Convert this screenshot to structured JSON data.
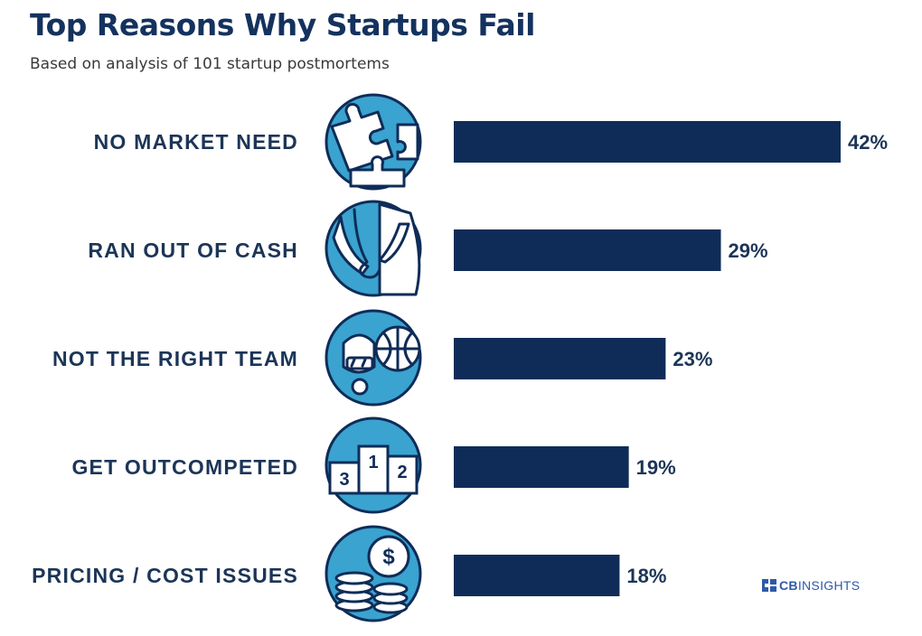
{
  "title": "Top Reasons Why Startups Fail",
  "subtitle": "Based on analysis of 101 startup postmortems",
  "brand": {
    "prefix": "CB",
    "suffix": "INSIGHTS"
  },
  "colors": {
    "bar": "#0f2c58",
    "icon_fill": "#3aa3cf",
    "text": "#1c3557",
    "title": "#14325e",
    "brand": "#2e5aa8"
  },
  "chart_data": {
    "type": "bar",
    "orientation": "horizontal",
    "title": "Top Reasons Why Startups Fail",
    "subtitle": "Based on analysis of 101 startup postmortems",
    "categories": [
      "NO MARKET NEED",
      "RAN OUT OF CASH",
      "NOT THE RIGHT TEAM",
      "GET OUTCOMPETED",
      "PRICING / COST ISSUES"
    ],
    "values": [
      42,
      29,
      23,
      19,
      18
    ],
    "value_labels": [
      "42%",
      "29%",
      "23%",
      "19%",
      "18%"
    ],
    "icons": [
      "puzzle-icon",
      "empty-pockets-icon",
      "team-icon",
      "podium-icon",
      "coins-icon"
    ],
    "podium_numbers": [
      "3",
      "1",
      "2"
    ],
    "dollar_sign": "$",
    "xlim": [
      0,
      42
    ],
    "xlabel": "",
    "ylabel": "",
    "grid": false
  }
}
